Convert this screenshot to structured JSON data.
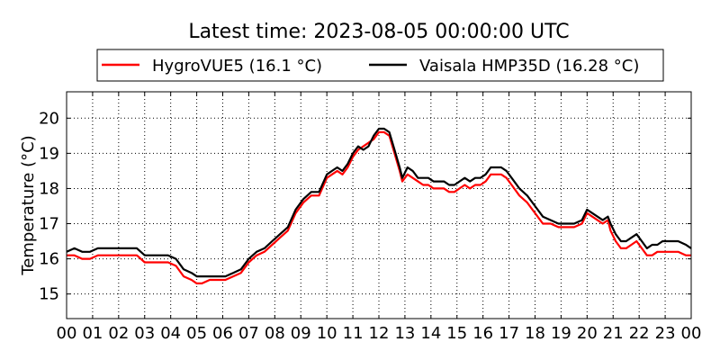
{
  "chart_data": {
    "type": "line",
    "title": "Latest time: 2023-08-05 00:00:00 UTC",
    "xlabel": "",
    "ylabel": "Temperature (°C)",
    "xlim": [
      0,
      24
    ],
    "ylim": [
      14.3,
      20.75
    ],
    "x_ticks": [
      "00",
      "01",
      "02",
      "03",
      "04",
      "05",
      "06",
      "07",
      "08",
      "09",
      "10",
      "11",
      "12",
      "13",
      "14",
      "15",
      "16",
      "17",
      "18",
      "19",
      "20",
      "21",
      "22",
      "23",
      "00"
    ],
    "y_ticks": [
      "15",
      "16",
      "17",
      "18",
      "19",
      "20"
    ],
    "grid": true,
    "legend_position": "top",
    "series": [
      {
        "name": "HygroVUE5 (16.1 °C)",
        "color": "#ff0000",
        "x": [
          0,
          0.3,
          0.6,
          0.9,
          1.2,
          1.5,
          1.8,
          2.1,
          2.4,
          2.7,
          3.0,
          3.3,
          3.6,
          3.9,
          4.2,
          4.5,
          4.8,
          5.0,
          5.2,
          5.5,
          5.8,
          6.1,
          6.4,
          6.7,
          7.0,
          7.3,
          7.6,
          7.9,
          8.2,
          8.5,
          8.8,
          9.1,
          9.4,
          9.7,
          10.0,
          10.2,
          10.4,
          10.6,
          10.8,
          11.0,
          11.2,
          11.4,
          11.6,
          11.8,
          12.0,
          12.2,
          12.4,
          12.6,
          12.8,
          12.9,
          13.1,
          13.3,
          13.5,
          13.7,
          13.9,
          14.1,
          14.3,
          14.5,
          14.7,
          14.9,
          15.1,
          15.3,
          15.5,
          15.7,
          15.9,
          16.1,
          16.3,
          16.5,
          16.7,
          16.9,
          17.1,
          17.4,
          17.7,
          18.0,
          18.3,
          18.6,
          18.9,
          19.2,
          19.5,
          19.8,
          20.0,
          20.2,
          20.4,
          20.6,
          20.8,
          20.9,
          21.1,
          21.3,
          21.5,
          21.7,
          21.9,
          22.1,
          22.3,
          22.5,
          22.7,
          22.9,
          23.2,
          23.5,
          23.8,
          24.0
        ],
        "values": [
          16.1,
          16.1,
          16.0,
          16.0,
          16.1,
          16.1,
          16.1,
          16.1,
          16.1,
          16.1,
          15.9,
          15.9,
          15.9,
          15.9,
          15.8,
          15.5,
          15.4,
          15.3,
          15.3,
          15.4,
          15.4,
          15.4,
          15.5,
          15.6,
          15.9,
          16.1,
          16.2,
          16.4,
          16.6,
          16.8,
          17.3,
          17.6,
          17.8,
          17.8,
          18.3,
          18.4,
          18.5,
          18.4,
          18.6,
          18.9,
          19.1,
          19.2,
          19.3,
          19.4,
          19.6,
          19.6,
          19.5,
          19.0,
          18.5,
          18.2,
          18.4,
          18.3,
          18.2,
          18.1,
          18.1,
          18.0,
          18.0,
          18.0,
          17.9,
          17.9,
          18.0,
          18.1,
          18.0,
          18.1,
          18.1,
          18.2,
          18.4,
          18.4,
          18.4,
          18.3,
          18.1,
          17.8,
          17.6,
          17.3,
          17.0,
          17.0,
          16.9,
          16.9,
          16.9,
          17.0,
          17.3,
          17.2,
          17.1,
          17.0,
          17.1,
          16.8,
          16.5,
          16.3,
          16.3,
          16.4,
          16.5,
          16.3,
          16.1,
          16.1,
          16.2,
          16.2,
          16.2,
          16.2,
          16.1,
          16.1
        ]
      },
      {
        "name": "Vaisala HMP35D (16.28 °C)",
        "color": "#000000",
        "x": [
          0,
          0.3,
          0.6,
          0.9,
          1.2,
          1.5,
          1.8,
          2.1,
          2.4,
          2.7,
          3.0,
          3.3,
          3.6,
          3.9,
          4.2,
          4.5,
          4.8,
          5.0,
          5.2,
          5.5,
          5.8,
          6.1,
          6.4,
          6.7,
          7.0,
          7.3,
          7.6,
          7.9,
          8.2,
          8.5,
          8.8,
          9.1,
          9.4,
          9.7,
          10.0,
          10.2,
          10.4,
          10.6,
          10.8,
          11.0,
          11.2,
          11.4,
          11.6,
          11.8,
          12.0,
          12.2,
          12.4,
          12.6,
          12.8,
          12.9,
          13.1,
          13.3,
          13.5,
          13.7,
          13.9,
          14.1,
          14.3,
          14.5,
          14.7,
          14.9,
          15.1,
          15.3,
          15.5,
          15.7,
          15.9,
          16.1,
          16.3,
          16.5,
          16.7,
          16.9,
          17.1,
          17.4,
          17.7,
          18.0,
          18.3,
          18.6,
          18.9,
          19.2,
          19.5,
          19.8,
          20.0,
          20.2,
          20.4,
          20.6,
          20.8,
          20.9,
          21.1,
          21.3,
          21.5,
          21.7,
          21.9,
          22.1,
          22.3,
          22.5,
          22.7,
          22.9,
          23.2,
          23.5,
          23.8,
          24.0
        ],
        "values": [
          16.2,
          16.3,
          16.2,
          16.2,
          16.3,
          16.3,
          16.3,
          16.3,
          16.3,
          16.3,
          16.1,
          16.1,
          16.1,
          16.1,
          16.0,
          15.7,
          15.6,
          15.5,
          15.5,
          15.5,
          15.5,
          15.5,
          15.6,
          15.7,
          16.0,
          16.2,
          16.3,
          16.5,
          16.7,
          16.9,
          17.4,
          17.7,
          17.9,
          17.9,
          18.4,
          18.5,
          18.6,
          18.5,
          18.7,
          19.0,
          19.2,
          19.1,
          19.2,
          19.5,
          19.7,
          19.7,
          19.6,
          19.1,
          18.6,
          18.3,
          18.6,
          18.5,
          18.3,
          18.3,
          18.3,
          18.2,
          18.2,
          18.2,
          18.1,
          18.1,
          18.2,
          18.3,
          18.2,
          18.3,
          18.3,
          18.4,
          18.6,
          18.6,
          18.6,
          18.5,
          18.3,
          18.0,
          17.8,
          17.5,
          17.2,
          17.1,
          17.0,
          17.0,
          17.0,
          17.1,
          17.4,
          17.3,
          17.2,
          17.1,
          17.2,
          17.0,
          16.7,
          16.5,
          16.5,
          16.6,
          16.7,
          16.5,
          16.3,
          16.4,
          16.4,
          16.5,
          16.5,
          16.5,
          16.4,
          16.3
        ]
      }
    ]
  }
}
